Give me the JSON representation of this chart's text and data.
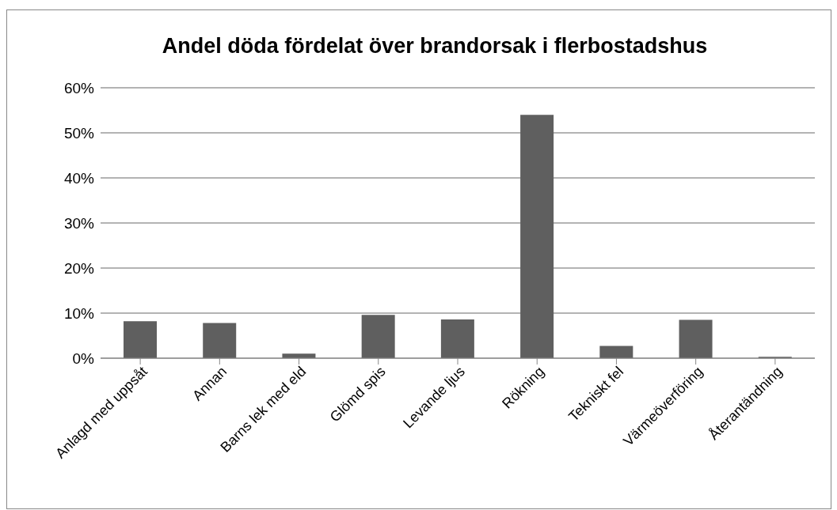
{
  "chart_data": {
    "type": "bar",
    "title": "Andel döda fördelat över brandorsak i flerbostadshus",
    "categories": [
      "Anlagd med uppsåt",
      "Annan",
      "Barns lek med eld",
      "Glömd spis",
      "Levande ljus",
      "Rökning",
      "Tekniskt fel",
      "Värmeöverföring",
      "Återantändning"
    ],
    "values": [
      8.2,
      7.8,
      1.0,
      9.6,
      8.6,
      54,
      2.7,
      8.5,
      0.3
    ],
    "color": "#5f5f5f",
    "ylim": [
      0,
      60
    ],
    "yticks": [
      {
        "value": 0,
        "label": "0%"
      },
      {
        "value": 10,
        "label": "10%"
      },
      {
        "value": 20,
        "label": "20%"
      },
      {
        "value": 30,
        "label": "30%"
      },
      {
        "value": 40,
        "label": "40%"
      },
      {
        "value": 50,
        "label": "50%"
      },
      {
        "value": 60,
        "label": "60%"
      }
    ],
    "grid": "y"
  }
}
